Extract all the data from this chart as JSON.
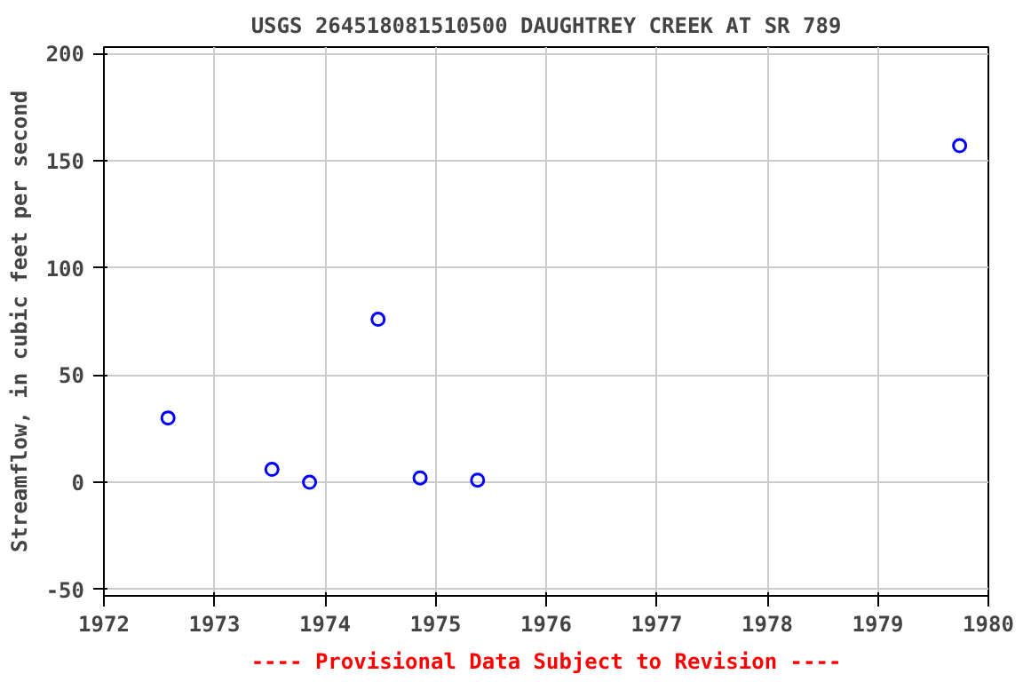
{
  "chart_data": {
    "type": "scatter",
    "title": "USGS 264518081510500 DAUGHTREY CREEK AT SR 789",
    "ylabel": "Streamflow, in cubic feet per second",
    "x": [
      1972.58,
      1973.52,
      1973.86,
      1974.48,
      1974.86,
      1975.38,
      1979.74
    ],
    "series": [
      {
        "color": "#0000ff",
        "values": [
          30,
          6,
          0,
          76,
          2,
          1,
          157
        ]
      }
    ],
    "xlim": [
      1972,
      1980
    ],
    "xticks": [
      1972,
      1973,
      1974,
      1975,
      1976,
      1977,
      1978,
      1979,
      1980
    ],
    "ylim": [
      -53,
      203
    ],
    "yticks": [
      -50,
      0,
      50,
      100,
      150,
      200
    ],
    "grid": true,
    "marker": "circle",
    "annotations": [
      "---- Provisional Data Subject to Revision ----"
    ]
  }
}
